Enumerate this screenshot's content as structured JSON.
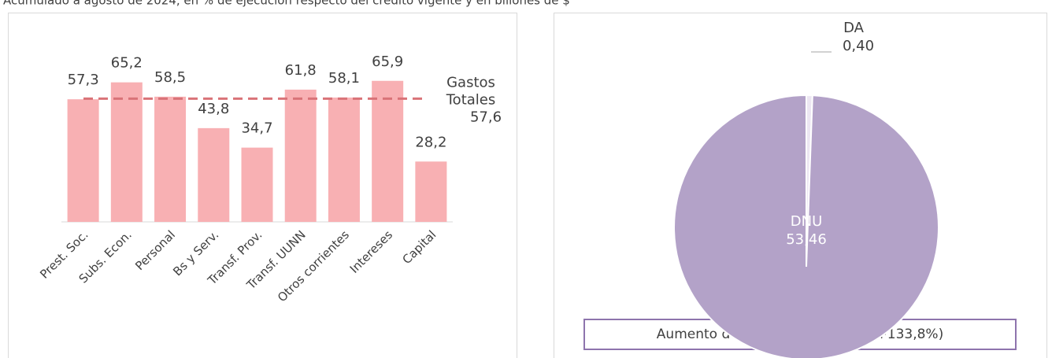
{
  "subtitle": "Acumulado a agosto de 2024, en % de ejecución respecto del crédito vigente y en billones de $",
  "chart_data": [
    {
      "type": "bar",
      "categories": [
        "Prest. Soc.",
        "Subs. Econ.",
        "Personal",
        "Bs y Serv.",
        "Transf. Prov.",
        "Transf. UUNN",
        "Otros corrientes",
        "Intereses",
        "Capital"
      ],
      "values": [
        57.3,
        65.2,
        58.5,
        43.8,
        34.7,
        61.8,
        58.1,
        65.9,
        28.2
      ],
      "value_labels": [
        "57,3",
        "65,2",
        "58,5",
        "43,8",
        "34,7",
        "61,8",
        "58,1",
        "65,9",
        "28,2"
      ],
      "color": "#f8b0b3",
      "ylim": [
        0,
        100
      ],
      "reference": {
        "label": "Gastos Totales",
        "value": 57.6,
        "value_label": "57,6",
        "color": "#d97378"
      }
    },
    {
      "type": "pie",
      "categories": [
        "DA",
        "DNU"
      ],
      "values": [
        0.4,
        53.46
      ],
      "value_labels": [
        "0,40",
        "53,46"
      ],
      "colors": [
        "#ece6f2",
        "#b3a2c8"
      ],
      "annotation": "Aumento del CI $53,86 billones (+133,8%)"
    }
  ]
}
